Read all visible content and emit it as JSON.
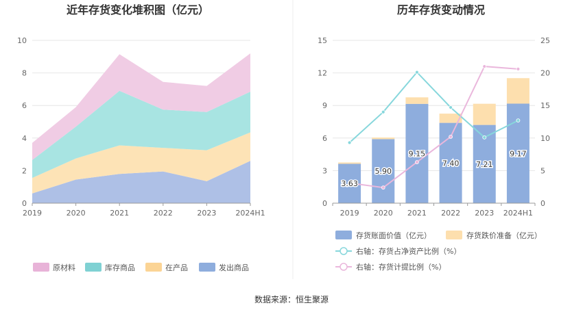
{
  "source": "数据来源：恒生聚源",
  "colors": {
    "raw": "#f0cce4",
    "stock": "#a8e4e2",
    "wip": "#fde3b6",
    "ship": "#aec0e6",
    "book": "#8eaddd",
    "provision": "#fddfae",
    "ratio_net": "#87d7dc",
    "ratio_prov": "#eab7dc",
    "legend_raw": "#e8b3d8",
    "legend_stock": "#7fd1d3",
    "legend_wip": "#fbd495",
    "legend_ship": "#8eaddd"
  },
  "chart_data": [
    {
      "type": "area",
      "stacked": true,
      "title": "近年存货变化堆积图（亿元）",
      "categories": [
        "2019",
        "2020",
        "2021",
        "2022",
        "2023",
        "2024H1"
      ],
      "ylim": [
        0,
        10
      ],
      "yticks": [
        0,
        2,
        4,
        6,
        8,
        10
      ],
      "grid": true,
      "legend_position": "bottom",
      "series": [
        {
          "name": "发出商品",
          "key": "ship",
          "values": [
            0.6,
            1.45,
            1.8,
            1.95,
            1.35,
            2.6
          ]
        },
        {
          "name": "在产品",
          "key": "wip",
          "values": [
            0.95,
            1.3,
            1.75,
            1.45,
            1.9,
            1.75
          ]
        },
        {
          "name": "库存商品",
          "key": "stock",
          "values": [
            1.1,
            1.95,
            3.35,
            2.35,
            2.35,
            2.5
          ]
        },
        {
          "name": "原材料",
          "key": "raw",
          "values": [
            1.05,
            1.2,
            2.25,
            1.7,
            1.6,
            2.35
          ]
        }
      ],
      "legend_order": [
        "原材料",
        "库存商品",
        "在产品",
        "发出商品"
      ]
    },
    {
      "type": "bar",
      "stacked": true,
      "title": "历年存货变动情况",
      "categories": [
        "2019",
        "2020",
        "2021",
        "2022",
        "2023",
        "2024H1"
      ],
      "ylim": [
        0,
        15
      ],
      "yticks": [
        0,
        3,
        6,
        9,
        12,
        15
      ],
      "y2lim": [
        0,
        25
      ],
      "y2ticks": [
        0,
        5,
        10,
        15,
        20,
        25
      ],
      "grid": true,
      "legend_position": "bottom",
      "series": [
        {
          "name": "存货账面价值（亿元）",
          "key": "book",
          "axis": "left",
          "kind": "bar",
          "values": [
            3.63,
            5.9,
            9.15,
            7.4,
            7.21,
            9.17
          ],
          "labels": [
            "3.63",
            "5.90",
            "9.15",
            "7.40",
            "7.21",
            "9.17"
          ]
        },
        {
          "name": "存货跌价准备（亿元）",
          "key": "provision",
          "axis": "left",
          "kind": "bar",
          "values": [
            0.12,
            0.15,
            0.6,
            0.85,
            1.95,
            2.35
          ]
        },
        {
          "name": "右轴：存货占净资产比例（%）",
          "key": "ratio_net",
          "axis": "right",
          "kind": "line",
          "values": [
            9.3,
            14.0,
            20.1,
            14.7,
            10.1,
            12.7
          ]
        },
        {
          "name": "右轴：存货计提比例（%）",
          "key": "ratio_prov",
          "axis": "right",
          "kind": "line",
          "values": [
            3.1,
            2.4,
            6.3,
            10.2,
            21.0,
            20.6
          ]
        }
      ]
    }
  ]
}
